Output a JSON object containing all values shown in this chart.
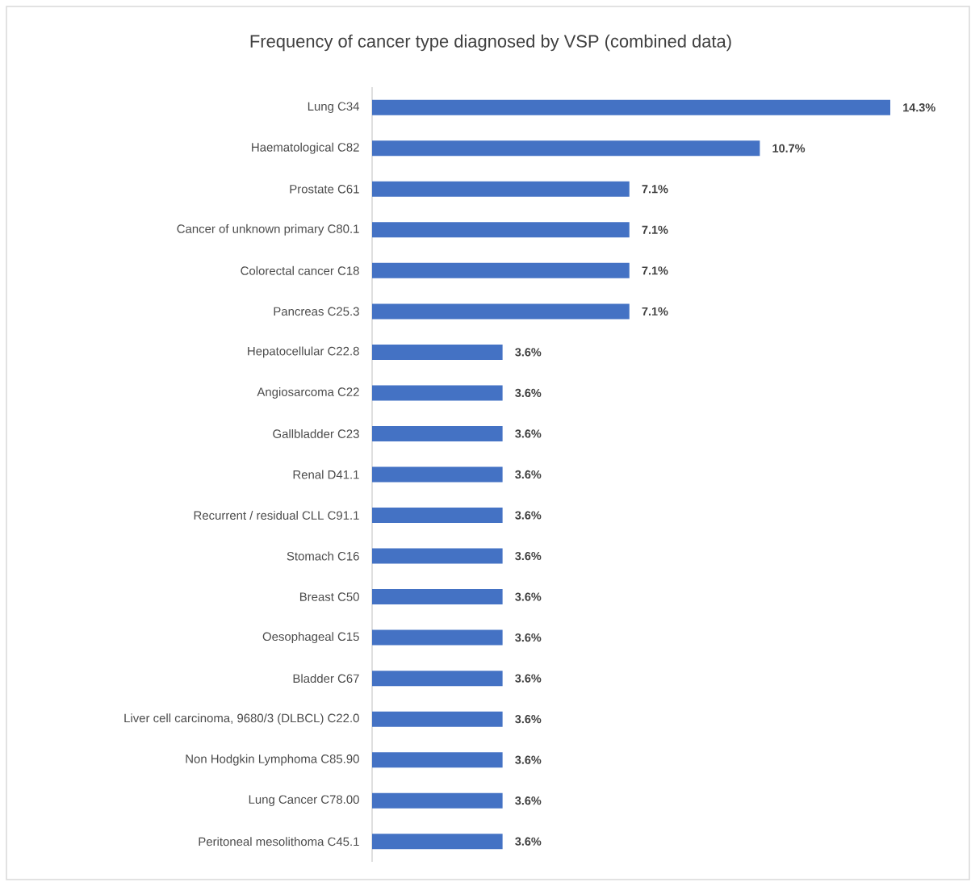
{
  "chart_data": {
    "type": "bar",
    "orientation": "horizontal",
    "title": "Frequency of cancer type diagnosed by VSP (combined data)",
    "categories": [
      "Lung C34",
      "Haematological C82",
      "Prostate C61",
      "Cancer of unknown primary C80.1",
      "Colorectal cancer C18",
      "Pancreas C25.3",
      "Hepatocellular C22.8",
      "Angiosarcoma C22",
      "Gallbladder C23",
      "Renal D41.1",
      "Recurrent / residual CLL C91.1",
      "Stomach C16",
      "Breast C50",
      "Oesophageal C15",
      "Bladder C67",
      "Liver cell carcinoma, 9680/3 (DLBCL) C22.0",
      "Non Hodgkin Lymphoma C85.90",
      "Lung Cancer C78.00",
      "Peritoneal mesolithoma C45.1"
    ],
    "values": [
      14.3,
      10.7,
      7.1,
      7.1,
      7.1,
      7.1,
      3.6,
      3.6,
      3.6,
      3.6,
      3.6,
      3.6,
      3.6,
      3.6,
      3.6,
      3.6,
      3.6,
      3.6,
      3.6
    ],
    "value_labels": [
      "14.3%",
      "10.7%",
      "7.1%",
      "7.1%",
      "7.1%",
      "7.1%",
      "3.6%",
      "3.6%",
      "3.6%",
      "3.6%",
      "3.6%",
      "3.6%",
      "3.6%",
      "3.6%",
      "3.6%",
      "3.6%",
      "3.6%",
      "3.6%",
      "3.6%"
    ],
    "color": "#4472c4"
  }
}
